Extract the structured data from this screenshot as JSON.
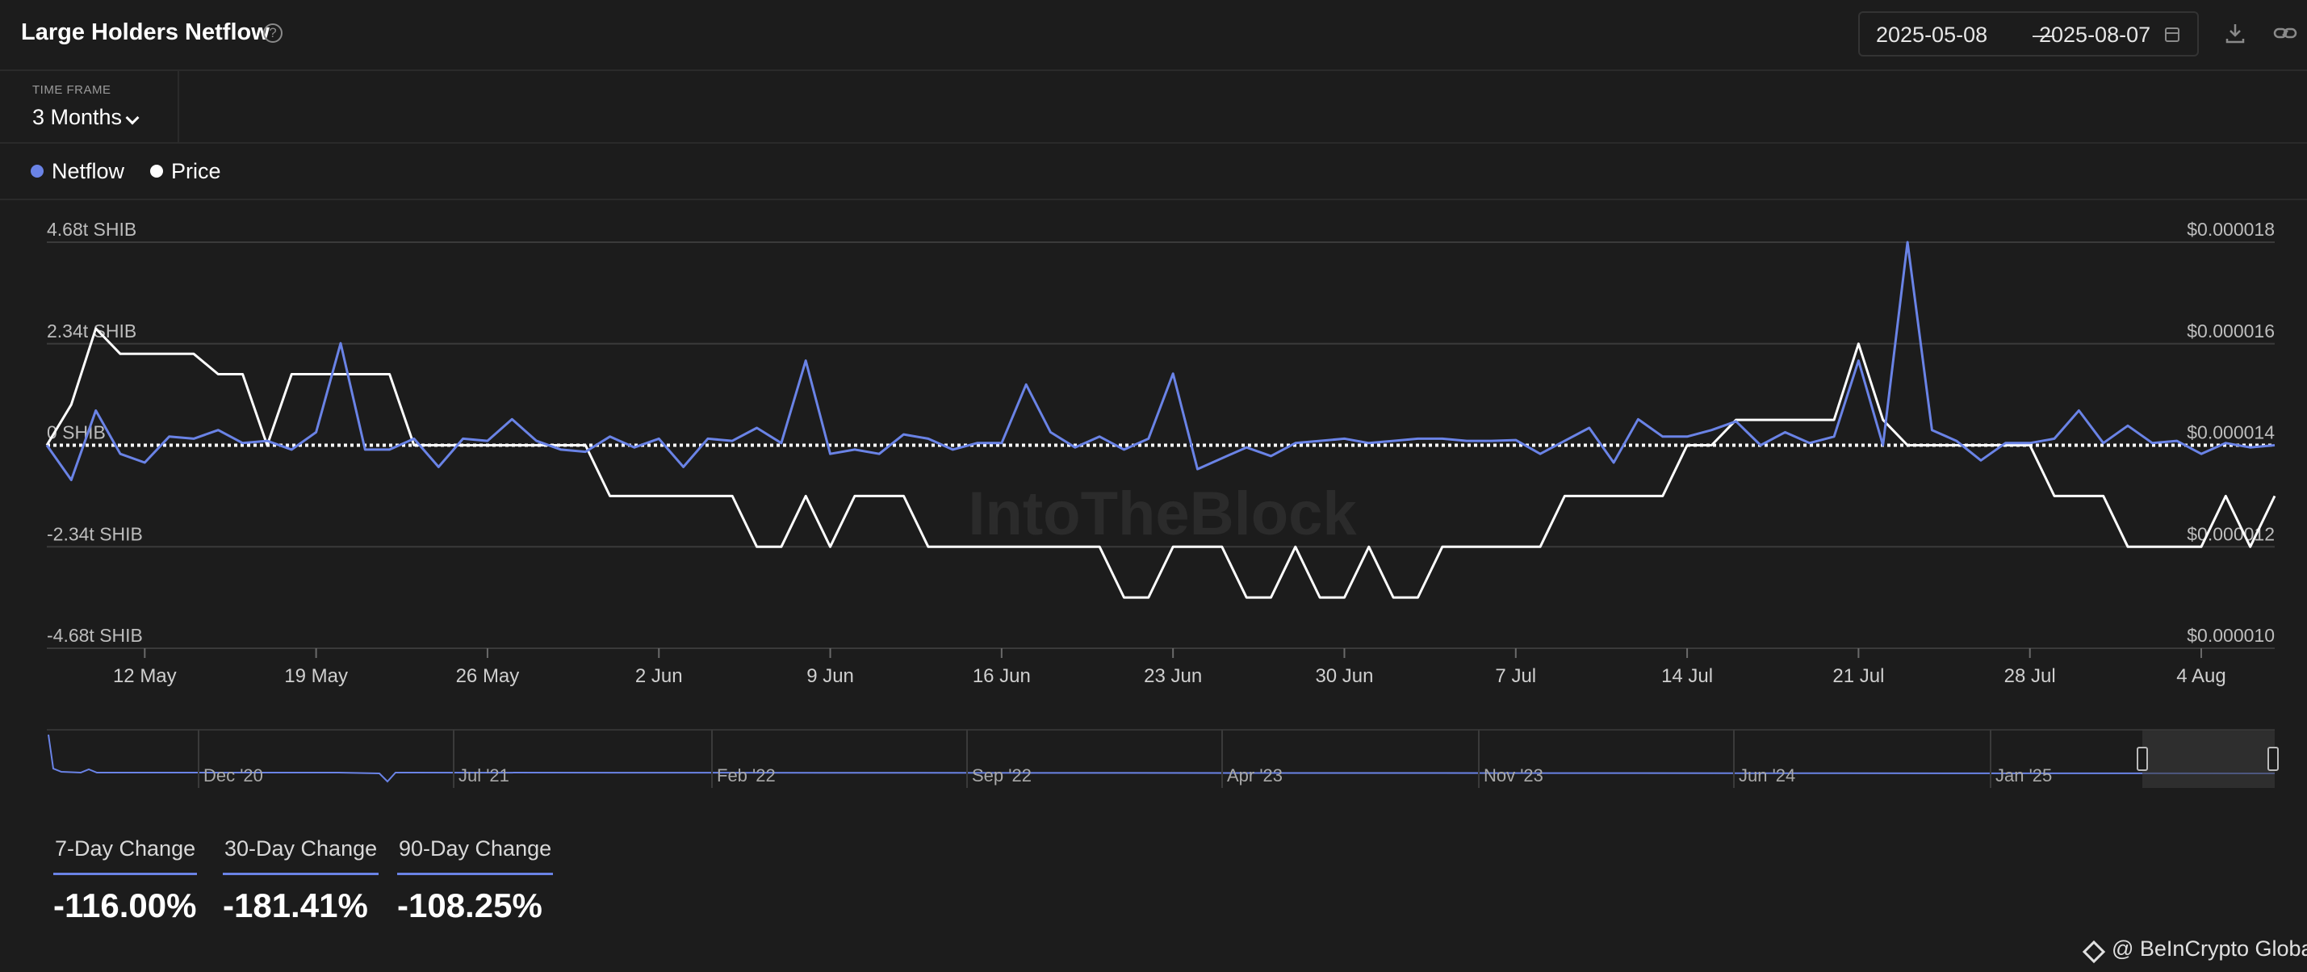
{
  "header": {
    "title": "Large Holders Netflow",
    "help_symbol": "?",
    "date_from": "2025-05-08",
    "date_sep": "—",
    "date_to": "2025-08-07"
  },
  "timeframe": {
    "label": "TIME FRAME",
    "value": "3 Months"
  },
  "legend": [
    {
      "label": "Netflow",
      "color": "#6a83e6"
    },
    {
      "label": "Price",
      "color": "#ffffff"
    }
  ],
  "watermark": "IntoTheBlock",
  "chart_data": {
    "type": "line",
    "title": "Large Holders Netflow",
    "x_ticks": [
      "12 May",
      "19 May",
      "26 May",
      "2 Jun",
      "9 Jun",
      "16 Jun",
      "23 Jun",
      "30 Jun",
      "7 Jul",
      "14 Jul",
      "21 Jul",
      "28 Jul",
      "4 Aug"
    ],
    "x_tick_days": [
      4,
      11,
      18,
      25,
      32,
      39,
      46,
      53,
      60,
      67,
      74,
      81,
      88
    ],
    "x_range_days": [
      0,
      91
    ],
    "x_start_date": "2025-05-08",
    "y_left": {
      "label": "Netflow (SHIB)",
      "ticks": [
        "4.68t SHIB",
        "2.34t SHIB",
        "0 SHIB",
        "-2.34t SHIB",
        "-4.68t SHIB"
      ],
      "tick_values": [
        4.68,
        2.34,
        0,
        -2.34,
        -4.68
      ],
      "range": [
        -4.68,
        4.68
      ],
      "unit": "trillion SHIB"
    },
    "y_right": {
      "label": "Price (USD)",
      "ticks": [
        "$0.000018",
        "$0.000016",
        "$0.000014",
        "$0.000012",
        "$0.000010"
      ],
      "tick_values": [
        1.8e-05,
        1.6e-05,
        1.4e-05,
        1.2e-05,
        1e-05
      ],
      "range": [
        1e-05,
        1.8e-05
      ]
    },
    "zero_line": "dotted",
    "series": [
      {
        "name": "Netflow",
        "axis": "left",
        "color": "#6a83e6",
        "x": [
          0,
          1,
          2,
          3,
          4,
          5,
          6,
          7,
          8,
          9,
          10,
          11,
          12,
          13,
          14,
          15,
          16,
          17,
          18,
          19,
          20,
          21,
          22,
          23,
          24,
          25,
          26,
          27,
          28,
          29,
          30,
          31,
          32,
          33,
          34,
          35,
          36,
          37,
          38,
          39,
          40,
          41,
          42,
          43,
          44,
          45,
          46,
          47,
          48,
          49,
          50,
          51,
          52,
          53,
          54,
          55,
          56,
          57,
          58,
          59,
          60,
          61,
          62,
          63,
          64,
          65,
          66,
          67,
          68,
          69,
          70,
          71,
          72,
          73,
          74,
          75,
          76,
          77,
          78,
          79,
          80,
          81,
          82,
          83,
          84,
          85,
          86,
          87,
          88,
          89,
          90,
          91
        ],
        "values": [
          0,
          -0.8,
          0.8,
          -0.2,
          -0.4,
          0.2,
          0.15,
          0.35,
          0.05,
          0.1,
          -0.1,
          0.3,
          2.35,
          -0.1,
          -0.1,
          0.15,
          -0.5,
          0.15,
          0.1,
          0.6,
          0.1,
          -0.1,
          -0.15,
          0.2,
          -0.05,
          0.15,
          -0.5,
          0.15,
          0.1,
          0.4,
          0.05,
          1.95,
          -0.2,
          -0.1,
          -0.2,
          0.25,
          0.15,
          -0.1,
          0.05,
          0.05,
          1.4,
          0.3,
          -0.05,
          0.2,
          -0.1,
          0.15,
          1.65,
          -0.55,
          -0.3,
          -0.05,
          -0.25,
          0.05,
          0.1,
          0.15,
          0.05,
          0.1,
          0.15,
          0.15,
          0.1,
          0.1,
          0.12,
          -0.2,
          0.1,
          0.4,
          -0.4,
          0.6,
          0.2,
          0.2,
          0.35,
          0.55,
          0,
          0.3,
          0.05,
          0.2,
          1.95,
          0,
          4.68,
          0.35,
          0.1,
          -0.35,
          0.05,
          0.05,
          0.15,
          0.8,
          0.05,
          0.45,
          0.05,
          0.1,
          -0.2,
          0.05,
          -0.05,
          0
        ]
      },
      {
        "name": "Price",
        "axis": "right",
        "color": "#ffffff",
        "x": [
          0,
          1,
          2,
          3,
          4,
          5,
          6,
          7,
          8,
          9,
          10,
          11,
          12,
          13,
          14,
          15,
          16,
          17,
          18,
          19,
          20,
          21,
          22,
          23,
          24,
          25,
          26,
          27,
          28,
          29,
          30,
          31,
          32,
          33,
          34,
          35,
          36,
          37,
          38,
          39,
          40,
          41,
          42,
          43,
          44,
          45,
          46,
          47,
          48,
          49,
          50,
          51,
          52,
          53,
          54,
          55,
          56,
          57,
          58,
          59,
          60,
          61,
          62,
          63,
          64,
          65,
          66,
          67,
          68,
          69,
          70,
          71,
          72,
          73,
          74,
          75,
          76,
          77,
          78,
          79,
          80,
          81,
          82,
          83,
          84,
          85,
          86,
          87,
          88,
          89,
          90,
          91
        ],
        "values": [
          1.4e-05,
          1.48e-05,
          1.63e-05,
          1.58e-05,
          1.58e-05,
          1.58e-05,
          1.58e-05,
          1.54e-05,
          1.54e-05,
          1.4e-05,
          1.54e-05,
          1.54e-05,
          1.54e-05,
          1.54e-05,
          1.54e-05,
          1.4e-05,
          1.4e-05,
          1.4e-05,
          1.4e-05,
          1.4e-05,
          1.4e-05,
          1.4e-05,
          1.4e-05,
          1.3e-05,
          1.3e-05,
          1.3e-05,
          1.3e-05,
          1.3e-05,
          1.3e-05,
          1.2e-05,
          1.2e-05,
          1.3e-05,
          1.2e-05,
          1.3e-05,
          1.3e-05,
          1.3e-05,
          1.2e-05,
          1.2e-05,
          1.2e-05,
          1.2e-05,
          1.2e-05,
          1.2e-05,
          1.2e-05,
          1.2e-05,
          1.1e-05,
          1.1e-05,
          1.2e-05,
          1.2e-05,
          1.2e-05,
          1.1e-05,
          1.1e-05,
          1.2e-05,
          1.1e-05,
          1.1e-05,
          1.2e-05,
          1.1e-05,
          1.1e-05,
          1.2e-05,
          1.2e-05,
          1.2e-05,
          1.2e-05,
          1.2e-05,
          1.3e-05,
          1.3e-05,
          1.3e-05,
          1.3e-05,
          1.3e-05,
          1.4e-05,
          1.4e-05,
          1.45e-05,
          1.45e-05,
          1.45e-05,
          1.45e-05,
          1.45e-05,
          1.6e-05,
          1.45e-05,
          1.4e-05,
          1.4e-05,
          1.4e-05,
          1.4e-05,
          1.4e-05,
          1.4e-05,
          1.3e-05,
          1.3e-05,
          1.3e-05,
          1.2e-05,
          1.2e-05,
          1.2e-05,
          1.2e-05,
          1.3e-05,
          1.2e-05,
          1.3e-05
        ]
      }
    ]
  },
  "navigator": {
    "labels": [
      "Dec '20",
      "Jul '21",
      "Feb '22",
      "Sep '22",
      "Apr '23",
      "Nov '23",
      "Jun '24",
      "Jan '25"
    ]
  },
  "stats": [
    {
      "label": "7-Day Change",
      "value": "-116.00%"
    },
    {
      "label": "30-Day Change",
      "value": "-181.41%"
    },
    {
      "label": "90-Day Change",
      "value": "-108.25%"
    }
  ],
  "credit": "@ BeInCrypto Global"
}
